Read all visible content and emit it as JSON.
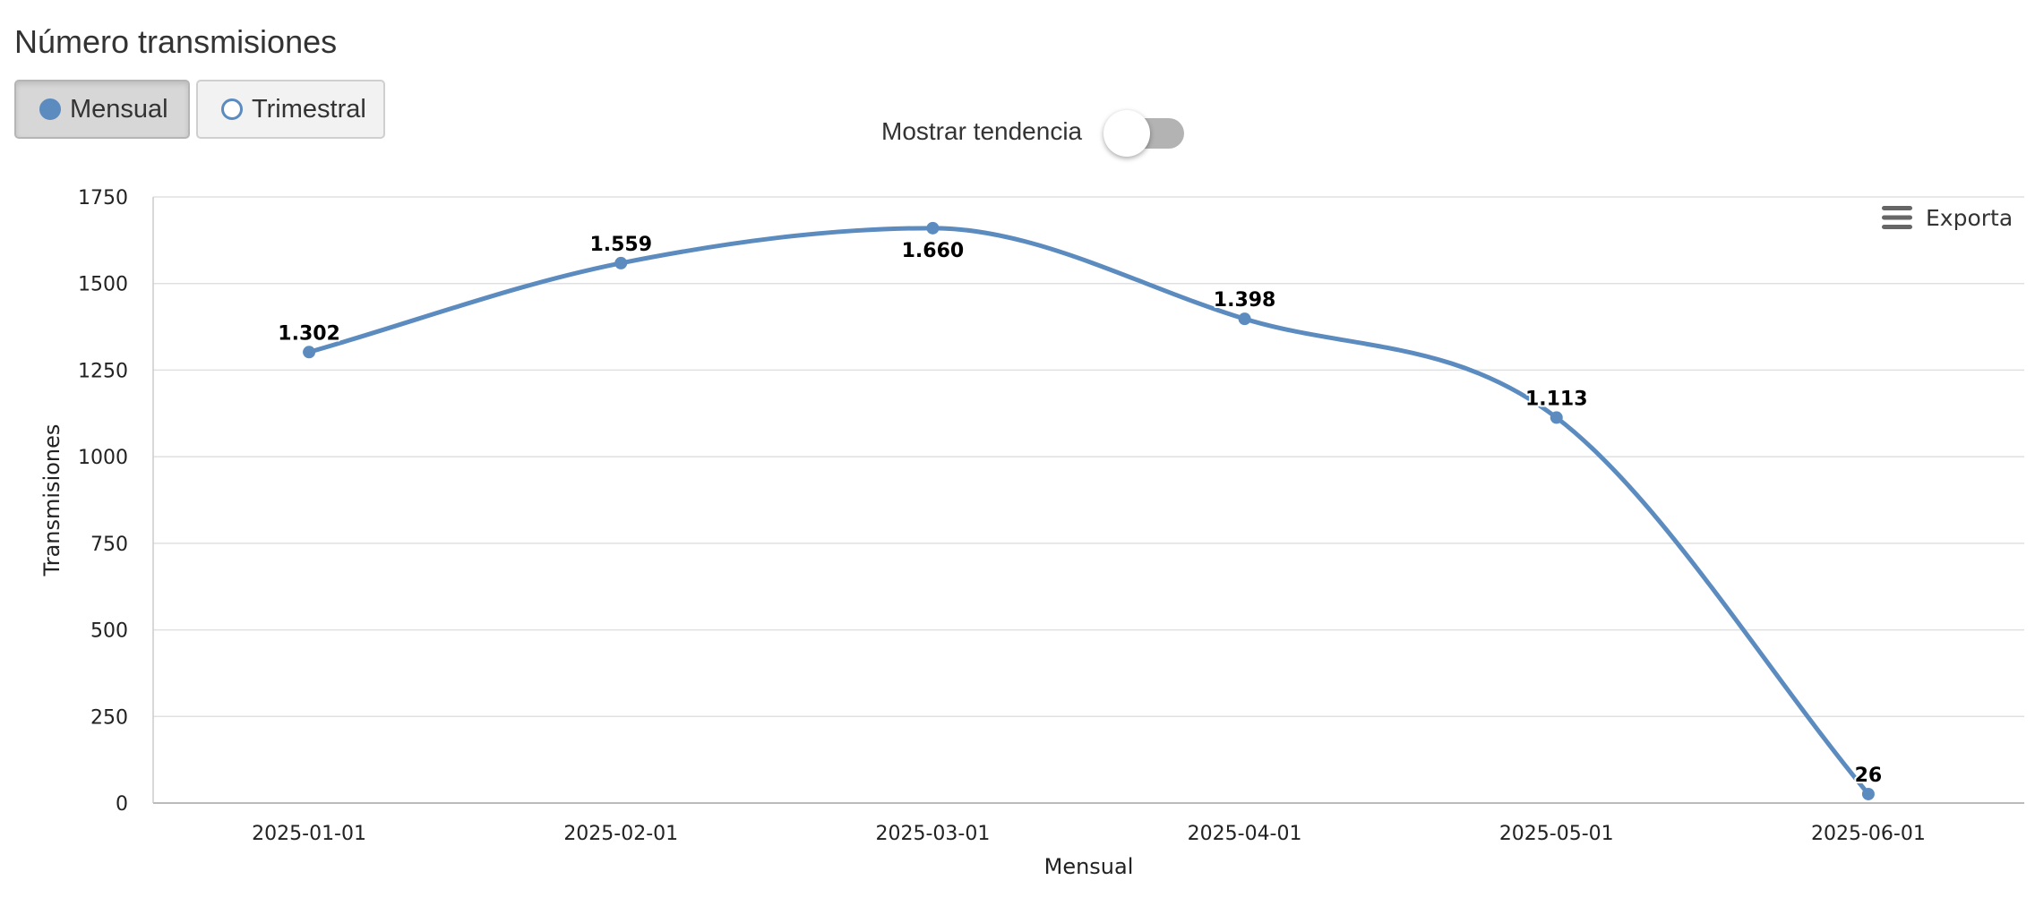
{
  "title": "Número transmisiones",
  "period_buttons": [
    {
      "label": "Mensual",
      "selected": true
    },
    {
      "label": "Trimestral",
      "selected": false
    }
  ],
  "trend_toggle": {
    "label": "Mostrar tendencia",
    "on": false
  },
  "export": {
    "label": "Exporta",
    "icon": "hamburger-menu-icon"
  },
  "colors": {
    "series": "#5b8bbf",
    "grid": "#e0e0e0",
    "toggle_track": "#b3b3b3"
  },
  "chart_data": {
    "type": "line",
    "smooth": true,
    "x": [
      "2025-01-01",
      "2025-02-01",
      "2025-03-01",
      "2025-04-01",
      "2025-05-01",
      "2025-06-01"
    ],
    "series": [
      {
        "values": [
          1302,
          1559,
          1660,
          1398,
          1113,
          26
        ],
        "labels": [
          "1.302",
          "1.559",
          "1.660",
          "1.398",
          "1.113",
          "26"
        ]
      }
    ],
    "xlabel": "Mensual",
    "ylabel": "Transmisiones",
    "ylim": [
      0,
      1750
    ],
    "yticks": [
      0,
      250,
      500,
      750,
      1000,
      1250,
      1500,
      1750
    ],
    "grid": true,
    "legend": "none"
  }
}
